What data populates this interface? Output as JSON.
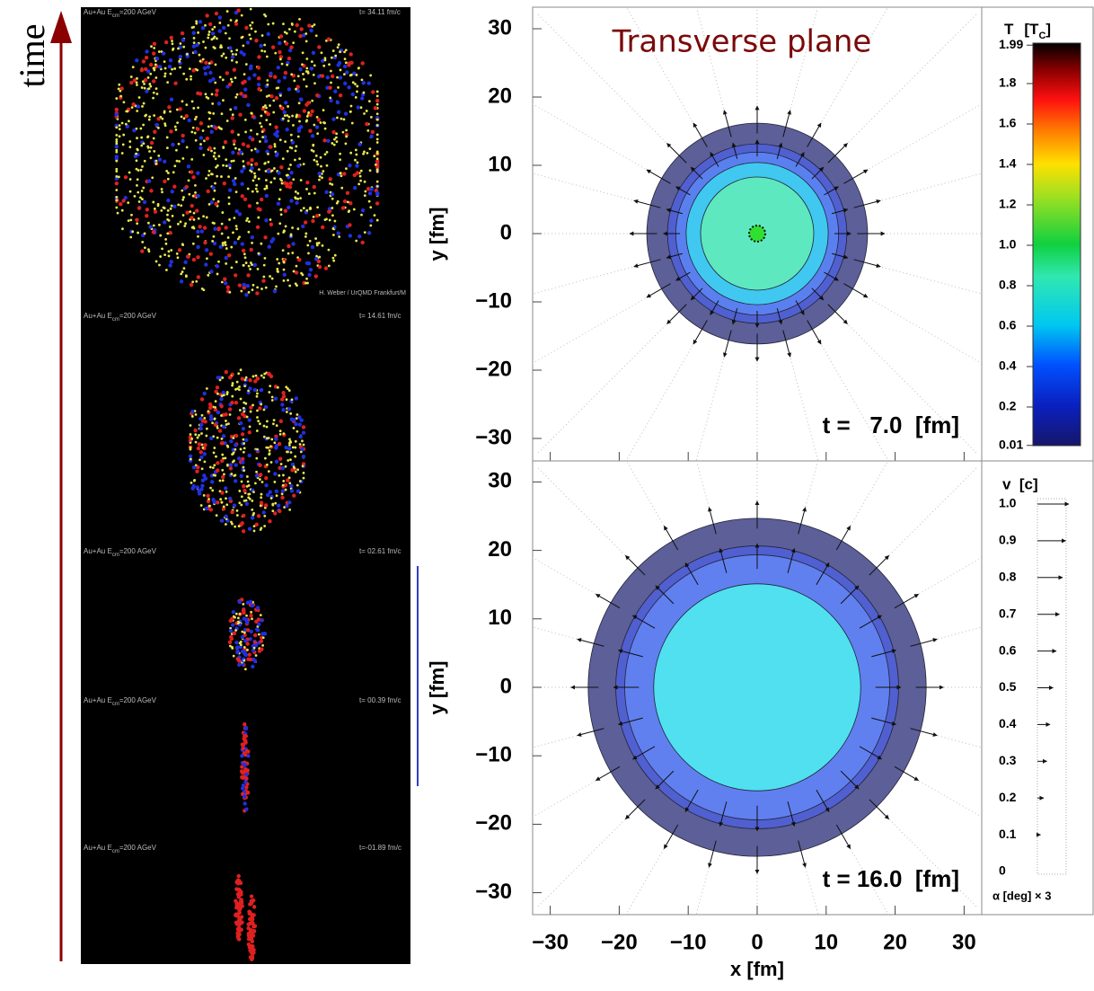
{
  "time_label": "time",
  "snapshots": [
    {
      "system": "Au+Au E",
      "sub": "cm",
      "energy": "=200 AGeV",
      "time": "t= 34.11 fm/c",
      "credit": "H. Weber / UrQMD Frankfurt/M"
    },
    {
      "system": "Au+Au E",
      "sub": "cm",
      "energy": "=200 AGeV",
      "time": "t= 14.61 fm/c"
    },
    {
      "system": "Au+Au E",
      "sub": "cm",
      "energy": "=200 AGeV",
      "time": "t= 02.61 fm/c"
    },
    {
      "system": "Au+Au E",
      "sub": "cm",
      "energy": "=200 AGeV",
      "time": "t= 00.39 fm/c"
    },
    {
      "system": "Au+Au E",
      "sub": "cm",
      "energy": "=200 AGeV",
      "time": "t=-01.89 fm/c"
    }
  ],
  "plot": {
    "title": "Transverse plane",
    "panels": [
      {
        "time_label": "t =   7.0  [fm]",
        "ylabel": "y [fm]"
      },
      {
        "time_label": "t = 16.0  [fm]",
        "ylabel": "y [fm]"
      }
    ],
    "xlabel": "x [fm]",
    "ticks": [
      {
        "value": -30,
        "label": "−30"
      },
      {
        "value": -20,
        "label": "−20"
      },
      {
        "value": -10,
        "label": "−10"
      },
      0,
      10,
      20,
      30
    ],
    "temperature_scale": {
      "title": "T",
      "unit": "[T",
      "unit_sub": "C",
      "unit_end": "]",
      "ticks": [
        1.99,
        1.8,
        1.6,
        1.4,
        1.2,
        {
          "value": 1,
          "label": "1.0"
        },
        0.8,
        0.6,
        0.4,
        0.2,
        0.01
      ]
    },
    "velocity_scale": {
      "title": "v  [c]",
      "footer": "α [deg] × 3",
      "ticks": [
        {
          "value": 1,
          "label": "1.0"
        },
        0.9,
        0.8,
        0.7,
        0.6,
        0.5,
        0.4,
        0.3,
        0.2,
        0.1,
        0
      ]
    }
  }
}
